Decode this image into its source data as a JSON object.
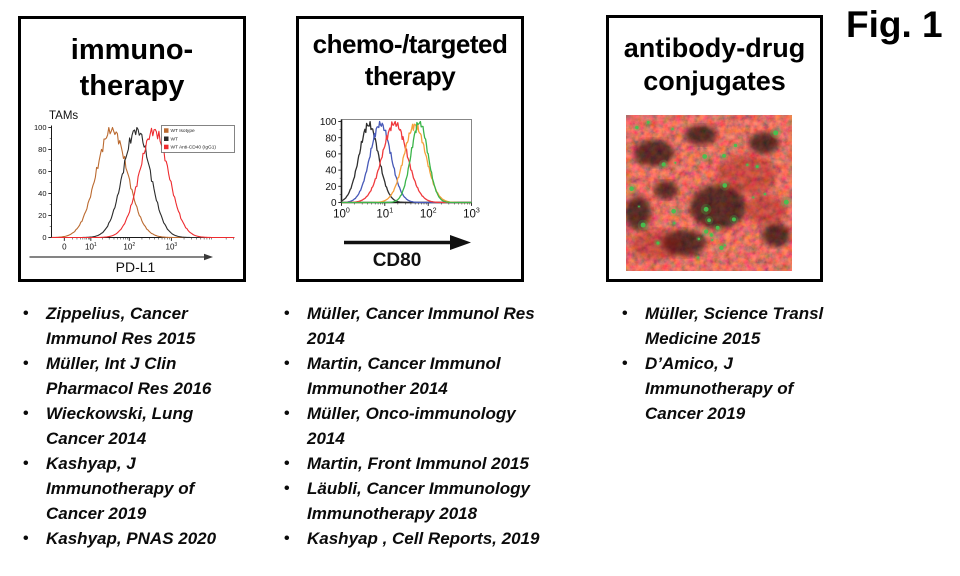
{
  "figure_label": "Fig. 1",
  "panels": [
    {
      "id": "immunotherapy",
      "title_lines": [
        "immuno-",
        "therapy"
      ]
    },
    {
      "id": "chemo-targeted",
      "title_lines": [
        "chemo-/targeted",
        "therapy"
      ]
    },
    {
      "id": "antibody-drug",
      "title_lines": [
        "antibody-drug",
        "conjugates"
      ]
    }
  ],
  "citations": {
    "immunotherapy": [
      "Zippelius, Cancer\nImmunol Res 2015",
      "Müller, Int J Clin\nPharmacol Res 2016",
      "Wieckowski, Lung\nCancer 2014",
      "Kashyap, J\nImmunotherapy of\nCancer 2019",
      "Kashyap, PNAS 2020"
    ],
    "chemo_targeted": [
      "Müller, Cancer Immunol Res\n2014",
      "Martin, Cancer Immunol\nImmunother 2014",
      "Müller, Onco-immunology\n2014",
      "Martin, Front Immunol 2015",
      "Läubli, Cancer Immunology\nImmunotherapy 2018",
      "Kashyap , Cell Reports, 2019"
    ],
    "antibody_drug_conjugates": [
      "Müller, Science Transl\nMedicine 2015",
      "D’Amico, J\nImmunotherapy of\nCancer 2019"
    ]
  },
  "chart_data": [
    {
      "type": "line",
      "subtype": "flow-cytometry-histogram",
      "title": "TAMs",
      "xlabel": "PD-L1",
      "ylabel": "",
      "ylim": [
        0,
        100
      ],
      "y_ticks": [
        0,
        20,
        40,
        60,
        80,
        100
      ],
      "x_scale": "biexponential-log",
      "x_ticks": [
        {
          "label": "0",
          "pos": 0.07
        },
        {
          "label": "10^1",
          "pos": 0.215
        },
        {
          "label": "10^2",
          "pos": 0.425
        },
        {
          "label": "10^3",
          "pos": 0.655
        }
      ],
      "grid": false,
      "legend_position": "top-right",
      "series": [
        {
          "name": "WT Isotype",
          "color": "#bb6a30",
          "peak_pos": 0.33,
          "sigma": 0.085,
          "peak_y": 98
        },
        {
          "name": "WT",
          "color": "#2b2b2b",
          "peak_pos": 0.465,
          "sigma": 0.075,
          "peak_y": 98
        },
        {
          "name": "WT Anti-CD40 (IgG1)",
          "color": "#ee2b2f",
          "peak_pos": 0.56,
          "sigma": 0.08,
          "peak_y": 97
        }
      ]
    },
    {
      "type": "line",
      "subtype": "flow-cytometry-histogram",
      "title": "",
      "xlabel": "CD80",
      "ylabel": "",
      "ylim": [
        0,
        100
      ],
      "y_ticks": [
        0,
        20,
        40,
        60,
        80,
        100
      ],
      "x_scale": "log",
      "x_ticks": [
        {
          "label": "10^0",
          "pos": 0
        },
        {
          "label": "10^1",
          "pos": 0.333
        },
        {
          "label": "10^2",
          "pos": 0.667
        },
        {
          "label": "10^3",
          "pos": 1
        }
      ],
      "grid": false,
      "legend_position": "none",
      "series": [
        {
          "name": "black curve",
          "color": "#2f2f2f",
          "peak_pos": 0.21,
          "sigma": 0.075,
          "peak_y": 96
        },
        {
          "name": "blue curve",
          "color": "#4759b8",
          "peak_pos": 0.3,
          "sigma": 0.08,
          "peak_y": 97
        },
        {
          "name": "red curve",
          "color": "#ef3a3d",
          "peak_pos": 0.41,
          "sigma": 0.095,
          "peak_y": 98
        },
        {
          "name": "orange curve",
          "color": "#f6a03c",
          "peak_pos": 0.565,
          "sigma": 0.085,
          "peak_y": 95
        },
        {
          "name": "green curve",
          "color": "#3bb54a",
          "peak_pos": 0.6,
          "sigma": 0.065,
          "peak_y": 99
        }
      ]
    }
  ],
  "micrograph": {
    "description": "confocal fluorescence image: red-stained tumor tissue with scattered green antibody-drug-conjugate signal",
    "colors": {
      "tissue_red": "#8f1010",
      "signal_green": "#44c24f",
      "background": "#160202"
    }
  }
}
